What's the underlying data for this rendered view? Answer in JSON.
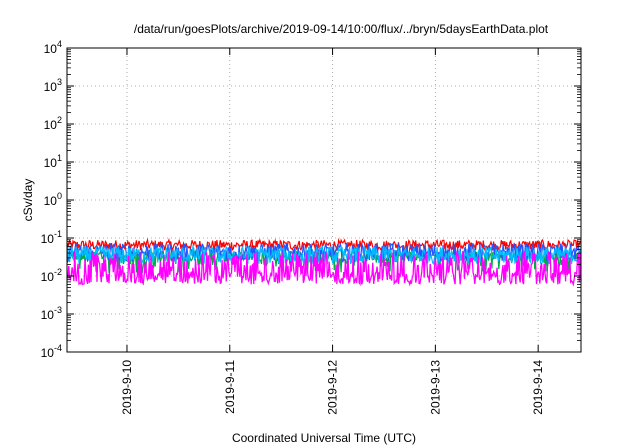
{
  "chart_data": {
    "type": "line",
    "title": "/data/run/goesPlots/archive/2019-09-14/10:00/flux/../bryn/5daysEarthData.plot",
    "xlabel": "Coordinated Universal Time (UTC)",
    "ylabel": "cSv/day",
    "y_scale": "log",
    "ylim": [
      0.0001,
      10000
    ],
    "y_ticks": [
      {
        "value": 0.0001,
        "base": "10",
        "exp": "-4"
      },
      {
        "value": 0.001,
        "base": "10",
        "exp": "-3"
      },
      {
        "value": 0.01,
        "base": "10",
        "exp": "-2"
      },
      {
        "value": 0.1,
        "base": "10",
        "exp": "-1"
      },
      {
        "value": 1,
        "base": "10",
        "exp": "0"
      },
      {
        "value": 10,
        "base": "10",
        "exp": "1"
      },
      {
        "value": 100,
        "base": "10",
        "exp": "2"
      },
      {
        "value": 1000,
        "base": "10",
        "exp": "3"
      },
      {
        "value": 10000,
        "base": "10",
        "exp": "4"
      }
    ],
    "xlim": [
      "2019-09-09 10:00",
      "2019-09-14 10:00"
    ],
    "x_ticks": [
      {
        "value": "2019-09-10 00:00",
        "label": "2019-9-10"
      },
      {
        "value": "2019-09-11 00:00",
        "label": "2019-9-11"
      },
      {
        "value": "2019-09-12 00:00",
        "label": "2019-9-12"
      },
      {
        "value": "2019-09-13 00:00",
        "label": "2019-9-13"
      },
      {
        "value": "2019-09-14 00:00",
        "label": "2019-9-14"
      }
    ],
    "grid": true,
    "series": [
      {
        "color": "#ff0000",
        "typical": 0.065,
        "low": 0.045,
        "high": 0.09
      },
      {
        "color": "#00aa44",
        "typical": 0.03,
        "low": 0.012,
        "high": 0.055
      },
      {
        "color": "#2255ff",
        "typical": 0.042,
        "low": 0.02,
        "high": 0.07
      },
      {
        "color": "#00bbff",
        "typical": 0.035,
        "low": 0.018,
        "high": 0.06
      },
      {
        "color": "#ff00ff",
        "typical": 0.009,
        "low": 0.006,
        "high": 0.045
      }
    ]
  }
}
